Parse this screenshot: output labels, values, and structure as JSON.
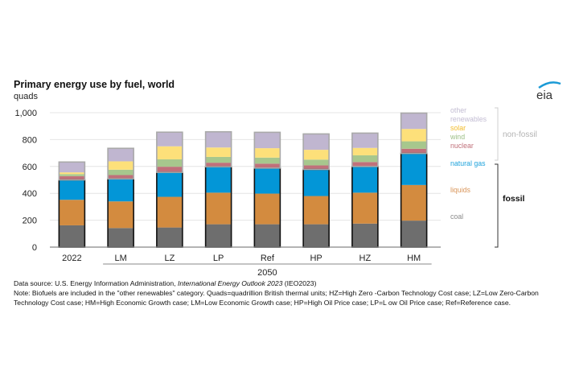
{
  "header": {
    "title": "Primary energy use by fuel, world",
    "subtitle": "quads",
    "logo_text": "eia"
  },
  "colors": {
    "coal": "#6e6e6e",
    "liquids": "#d38b3f",
    "natural_gas": "#0396d7",
    "nuclear": "#c0707a",
    "wind": "#a7c78d",
    "solar": "#fde07a",
    "other_renewables": "#c0b6d0",
    "fossil_outline": "#111111",
    "nonfossil_outline": "#a9a9a9",
    "grid": "#e4e4e4",
    "label_natural_gas": "#1fa3dc",
    "label_liquids": "#d9955a",
    "label_coal": "#8a8a8a",
    "label_nuclear": "#c0707a",
    "label_wind": "#9cbf86",
    "label_solar": "#f2bb2a",
    "label_other": "#c3bdd3",
    "label_nonfossil": "#b3b3b3"
  },
  "chart_data": {
    "type": "bar",
    "stacked": true,
    "title": "Primary energy use by fuel, world",
    "ylabel": "quads",
    "xlabel": "",
    "ylim": [
      0,
      1000
    ],
    "yticks": [
      0,
      200,
      400,
      600,
      800,
      1000
    ],
    "ytick_labels": [
      "0",
      "200",
      "400",
      "600",
      "800",
      "1,000"
    ],
    "grid": true,
    "categories": [
      "2022",
      "LM",
      "LZ",
      "LP",
      "Ref",
      "HP",
      "HZ",
      "HM"
    ],
    "group_label": "2050",
    "group_categories": [
      "LM",
      "LZ",
      "LP",
      "Ref",
      "HP",
      "HZ",
      "HM"
    ],
    "series": [
      {
        "name": "coal",
        "key": "coal",
        "group": "fossil",
        "values": [
          162,
          142,
          146,
          170,
          170,
          170,
          175,
          197
        ]
      },
      {
        "name": "liquids",
        "key": "liquids",
        "group": "fossil",
        "values": [
          190,
          198,
          228,
          235,
          228,
          210,
          230,
          265
        ]
      },
      {
        "name": "natural gas",
        "key": "natural_gas",
        "group": "fossil",
        "values": [
          148,
          168,
          182,
          193,
          190,
          198,
          195,
          235
        ]
      },
      {
        "name": "nuclear",
        "key": "nuclear",
        "group": "non-fossil",
        "values": [
          28,
          28,
          42,
          30,
          33,
          30,
          33,
          35
        ]
      },
      {
        "name": "wind",
        "key": "wind",
        "group": "non-fossil",
        "values": [
          15,
          40,
          55,
          43,
          45,
          43,
          50,
          55
        ]
      },
      {
        "name": "solar",
        "key": "solar",
        "group": "non-fossil",
        "values": [
          13,
          62,
          97,
          70,
          70,
          73,
          55,
          92
        ]
      },
      {
        "name": "other renewables",
        "key": "other_renewables",
        "group": "non-fossil",
        "values": [
          77,
          97,
          105,
          117,
          118,
          118,
          110,
          118
        ]
      }
    ],
    "legend": {
      "placement": "right",
      "labels": {
        "other_renewables_line1": "other",
        "other_renewables_line2": "renewables",
        "solar": "solar",
        "wind": "wind",
        "nuclear": "nuclear",
        "natural_gas": "natural gas",
        "liquids": "liquids",
        "coal": "coal"
      },
      "groups": {
        "non_fossil": "non-fossil",
        "fossil": "fossil"
      }
    }
  },
  "notes": {
    "source_prefix": "Data source: U.S. Energy Information Administration,",
    "source_title": "International Energy Outlook 2023",
    "source_suffix": "(IEO2023)",
    "note": "Note: Biofuels are included in the \"other renewables\" category. Quads=quadrillion British thermal units; HZ=High Zero -Carbon Technology Cost case; LZ=Low Zero-Carbon Technology Cost case; HM=High Economic Growth case; LM=Low Economic Growth case; HP=High Oil Price case; LP=L ow Oil Price case; Ref=Reference case."
  }
}
